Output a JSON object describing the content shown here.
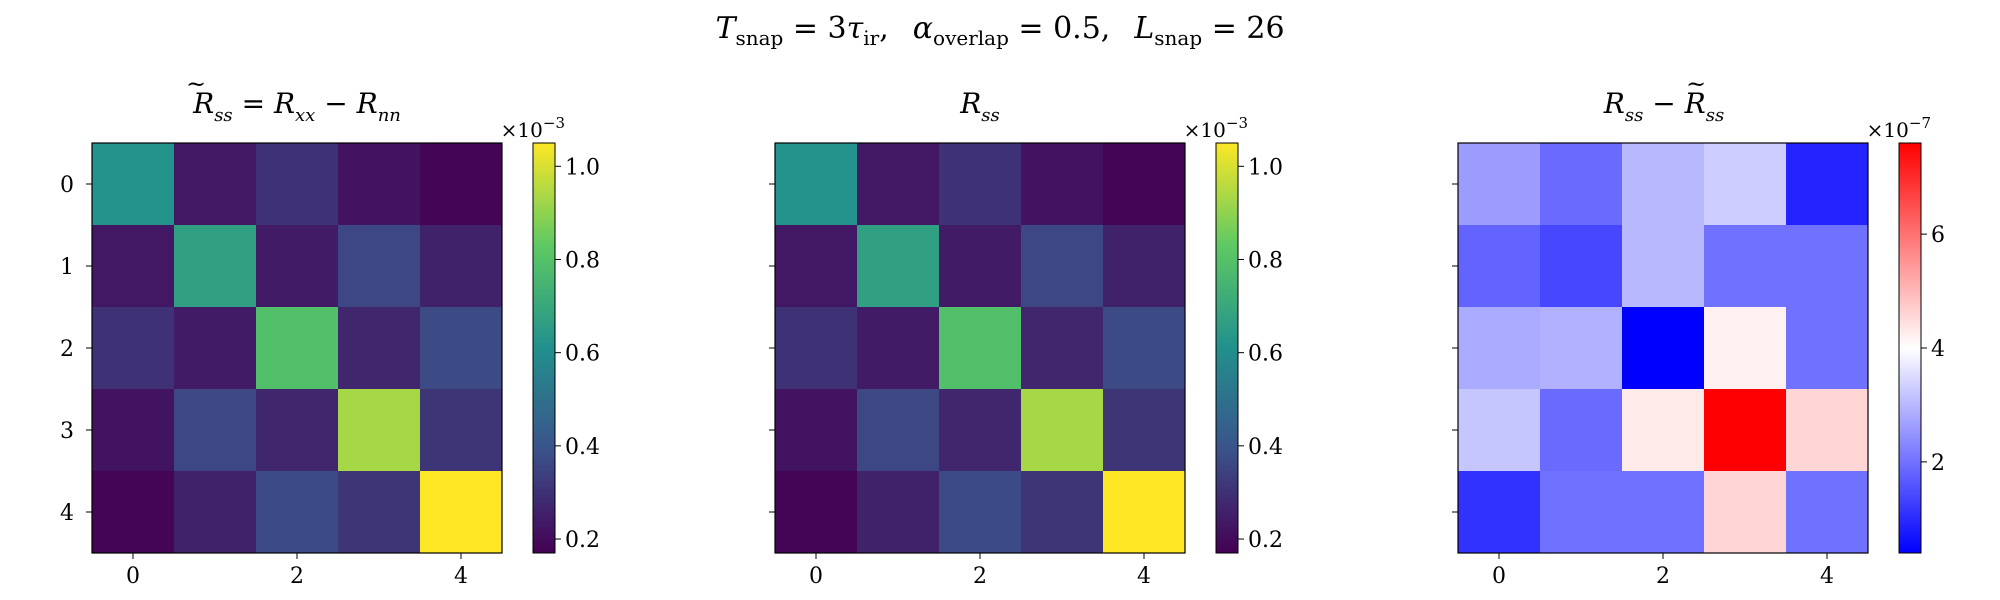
{
  "figure": {
    "suptitle_parts": {
      "T": "T",
      "snap": "snap",
      "eq1": " = 3",
      "tau": "τ",
      "ir": "ir",
      "sep1": ",",
      "alpha": "α",
      "overlap": "overlap",
      "eq2": " = 0.5,",
      "L": "L",
      "snap2": "snap",
      "eq3": " = 26"
    }
  },
  "chart_data": [
    {
      "type": "heatmap",
      "title_parts": {
        "R": "R",
        "tilde": "~",
        "ss": "ss",
        "eq": " = ",
        "R2": "R",
        "xx": "xx",
        "minus": " − ",
        "R3": "R",
        "nn": "nn"
      },
      "x_ticks": [
        "0",
        "2",
        "4"
      ],
      "x_tick_values": [
        0,
        2,
        4
      ],
      "y_ticks": [
        "0",
        "1",
        "2",
        "3",
        "4"
      ],
      "y_tick_values": [
        0,
        1,
        2,
        3,
        4
      ],
      "show_y_tick_labels": true,
      "colormap": "viridis",
      "vmin": 0.17,
      "vmax": 1.05,
      "colorbar_ticks": [
        "0.2",
        "0.4",
        "0.6",
        "0.8",
        "1.0"
      ],
      "colorbar_tick_values": [
        0.2,
        0.4,
        0.6,
        0.8,
        1.0
      ],
      "colorbar_scale": {
        "base": "×10",
        "exp": "−3"
      },
      "values": [
        [
          0.62,
          0.23,
          0.3,
          0.22,
          0.18
        ],
        [
          0.23,
          0.67,
          0.24,
          0.36,
          0.26
        ],
        [
          0.3,
          0.24,
          0.79,
          0.27,
          0.37
        ],
        [
          0.22,
          0.36,
          0.27,
          0.93,
          0.31
        ],
        [
          0.18,
          0.26,
          0.37,
          0.31,
          1.05
        ]
      ]
    },
    {
      "type": "heatmap",
      "title_parts": {
        "R": "R",
        "ss": "ss"
      },
      "x_ticks": [
        "0",
        "2",
        "4"
      ],
      "x_tick_values": [
        0,
        2,
        4
      ],
      "y_ticks": [
        "0",
        "1",
        "2",
        "3",
        "4"
      ],
      "y_tick_values": [
        0,
        1,
        2,
        3,
        4
      ],
      "show_y_tick_labels": false,
      "colormap": "viridis",
      "vmin": 0.17,
      "vmax": 1.05,
      "colorbar_ticks": [
        "0.2",
        "0.4",
        "0.6",
        "0.8",
        "1.0"
      ],
      "colorbar_tick_values": [
        0.2,
        0.4,
        0.6,
        0.8,
        1.0
      ],
      "colorbar_scale": {
        "base": "×10",
        "exp": "−3"
      },
      "values": [
        [
          0.62,
          0.23,
          0.3,
          0.22,
          0.18
        ],
        [
          0.23,
          0.67,
          0.24,
          0.36,
          0.26
        ],
        [
          0.3,
          0.24,
          0.79,
          0.27,
          0.37
        ],
        [
          0.22,
          0.36,
          0.27,
          0.93,
          0.31
        ],
        [
          0.18,
          0.26,
          0.37,
          0.31,
          1.05
        ]
      ]
    },
    {
      "type": "heatmap",
      "title_parts": {
        "R": "R",
        "ss": "ss",
        "minus": " − ",
        "R2": "R",
        "tilde": "~",
        "ss2": "ss"
      },
      "x_ticks": [
        "0",
        "2",
        "4"
      ],
      "x_tick_values": [
        0,
        2,
        4
      ],
      "y_ticks": [
        "0",
        "1",
        "2",
        "3",
        "4"
      ],
      "y_tick_values": [
        0,
        1,
        2,
        3,
        4
      ],
      "show_y_tick_labels": false,
      "colormap": "bwr",
      "vmin": 0.4,
      "vmax": 7.6,
      "colorbar_ticks": [
        "2",
        "4",
        "6"
      ],
      "colorbar_tick_values": [
        2,
        4,
        6
      ],
      "colorbar_scale": {
        "base": "×10",
        "exp": "−7"
      },
      "values": [
        [
          2.6,
          1.9,
          3.0,
          3.3,
          0.9
        ],
        [
          1.8,
          1.4,
          3.0,
          2.0,
          2.0
        ],
        [
          2.8,
          2.9,
          0.4,
          4.2,
          2.0
        ],
        [
          3.2,
          1.9,
          4.3,
          7.6,
          4.6
        ],
        [
          1.1,
          2.0,
          2.0,
          4.6,
          2.0
        ]
      ]
    }
  ]
}
